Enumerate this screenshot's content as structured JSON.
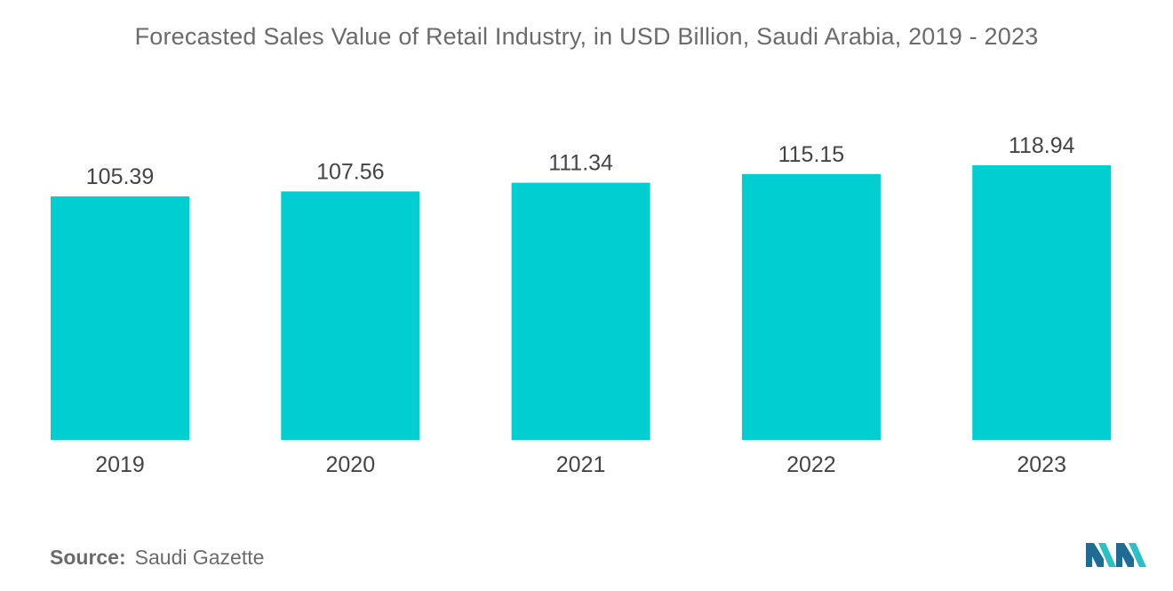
{
  "title": "Forecasted Sales Value of Retail Industry, in USD Billion, Saudi Arabia, 2019 - 2023",
  "source": {
    "label": "Source:",
    "text": "Saudi Gazette"
  },
  "colors": {
    "bar": "#00CED1",
    "text": "#444444",
    "title": "#6b6b6b",
    "logo_dark": "#1f6b94",
    "logo_light": "#2ac0c6"
  },
  "chart_data": {
    "type": "bar",
    "title": "Forecasted Sales Value of Retail Industry, in USD Billion, Saudi Arabia, 2019 - 2023",
    "categories": [
      "2019",
      "2020",
      "2021",
      "2022",
      "2023"
    ],
    "values": [
      105.39,
      107.56,
      111.34,
      115.15,
      118.94
    ],
    "value_labels": [
      "105.39",
      "107.56",
      "111.34",
      "115.15",
      "118.94"
    ],
    "xlabel": "",
    "ylabel": "",
    "grid": false,
    "legend": "none"
  }
}
